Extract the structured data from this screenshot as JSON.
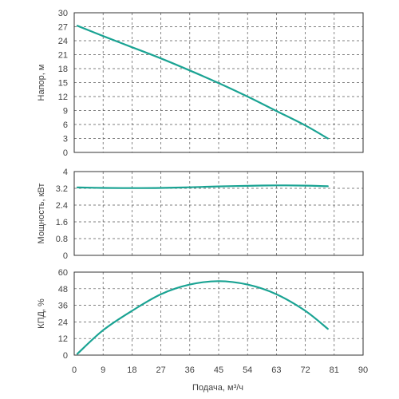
{
  "chart_data": {
    "type": "line",
    "x_axis": {
      "label": "Подача, м³/ч",
      "min": 0,
      "max": 90,
      "ticks": [
        "0",
        "9",
        "18",
        "27",
        "36",
        "45",
        "54",
        "63",
        "72",
        "81",
        "90"
      ]
    },
    "curve_color": "#1aa393",
    "grid": true,
    "panels": [
      {
        "ylabel": "Напор, м",
        "ylim": [
          0,
          30
        ],
        "yticks": [
          "30",
          "27",
          "24",
          "21",
          "18",
          "15",
          "12",
          "9",
          "6",
          "3",
          "0"
        ],
        "x": [
          1,
          9,
          18,
          27,
          36,
          45,
          54,
          63,
          72,
          79
        ],
        "y": [
          27.2,
          25.0,
          22.6,
          20.2,
          17.6,
          14.9,
          12.0,
          8.9,
          5.8,
          3.0
        ]
      },
      {
        "ylabel": "Мощность, кВт",
        "ylim": [
          0,
          4
        ],
        "yticks": [
          "4",
          "3.2",
          "2.4",
          "1.6",
          "0.8",
          "0"
        ],
        "x": [
          1,
          9,
          18,
          27,
          36,
          45,
          54,
          63,
          72,
          79
        ],
        "y": [
          3.24,
          3.22,
          3.21,
          3.22,
          3.25,
          3.29,
          3.32,
          3.34,
          3.33,
          3.3
        ]
      },
      {
        "ylabel": "КПД, %",
        "ylim": [
          0,
          60
        ],
        "yticks": [
          "60",
          "48",
          "36",
          "24",
          "12",
          "0"
        ],
        "x": [
          1,
          9,
          18,
          27,
          36,
          45,
          54,
          63,
          72,
          79
        ],
        "y": [
          1,
          18,
          32,
          44,
          51,
          53.5,
          51,
          44,
          32,
          19
        ]
      }
    ]
  }
}
